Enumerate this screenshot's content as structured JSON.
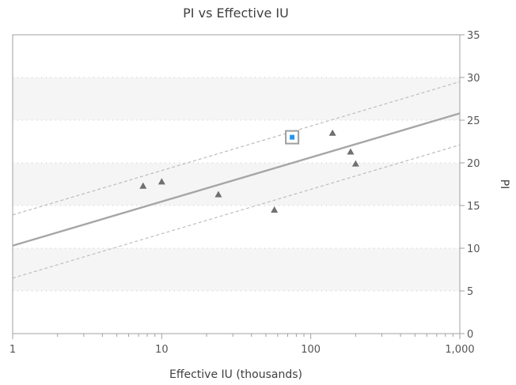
{
  "chart_data": {
    "type": "scatter",
    "title": "PI vs Effective IU",
    "xlabel": "Effective IU (thousands)",
    "ylabel": "PI",
    "x_scale": "log",
    "xlim": [
      1,
      1000
    ],
    "ylim": [
      0,
      35
    ],
    "x_ticks": [
      {
        "value": 1,
        "label": "1"
      },
      {
        "value": 10,
        "label": "10"
      },
      {
        "value": 100,
        "label": "100"
      },
      {
        "value": 1000,
        "label": "1,000"
      }
    ],
    "y_ticks": [
      {
        "value": 0,
        "label": "0"
      },
      {
        "value": 5,
        "label": "5"
      },
      {
        "value": 10,
        "label": "10"
      },
      {
        "value": 15,
        "label": "15"
      },
      {
        "value": 20,
        "label": "20"
      },
      {
        "value": 25,
        "label": "25"
      },
      {
        "value": 30,
        "label": "30"
      },
      {
        "value": 35,
        "label": "35"
      }
    ],
    "y_axis_side": "right",
    "grid": "horizontal dotted",
    "alternating_bands": true,
    "points": [
      {
        "x": 7.5,
        "y": 17.3,
        "marker": "triangle"
      },
      {
        "x": 10,
        "y": 17.8,
        "marker": "triangle"
      },
      {
        "x": 24,
        "y": 16.3,
        "marker": "triangle"
      },
      {
        "x": 57,
        "y": 14.5,
        "marker": "triangle"
      },
      {
        "x": 140,
        "y": 23.5,
        "marker": "triangle"
      },
      {
        "x": 185,
        "y": 21.3,
        "marker": "triangle"
      },
      {
        "x": 200,
        "y": 19.9,
        "marker": "triangle"
      },
      {
        "x": 75,
        "y": 23.0,
        "marker": "square",
        "highlighted": true
      }
    ],
    "regression": {
      "fit": {
        "x": [
          1,
          1000
        ],
        "y": [
          10.3,
          25.8
        ]
      },
      "upper_band": {
        "x": [
          1,
          1000
        ],
        "y": [
          13.9,
          29.5
        ]
      },
      "lower_band": {
        "x": [
          1,
          1000
        ],
        "y": [
          6.5,
          22.1
        ]
      }
    },
    "colors": {
      "points": "#707070",
      "highlight_fill": "#2196f3",
      "highlight_border": "#9e9e9e",
      "fit_line": "#a6a6a6",
      "band_line": "#bdbdbd",
      "band_shade": "#f5f5f5",
      "grid": "#c8c8c8",
      "axis": "#a0a0a0"
    }
  }
}
